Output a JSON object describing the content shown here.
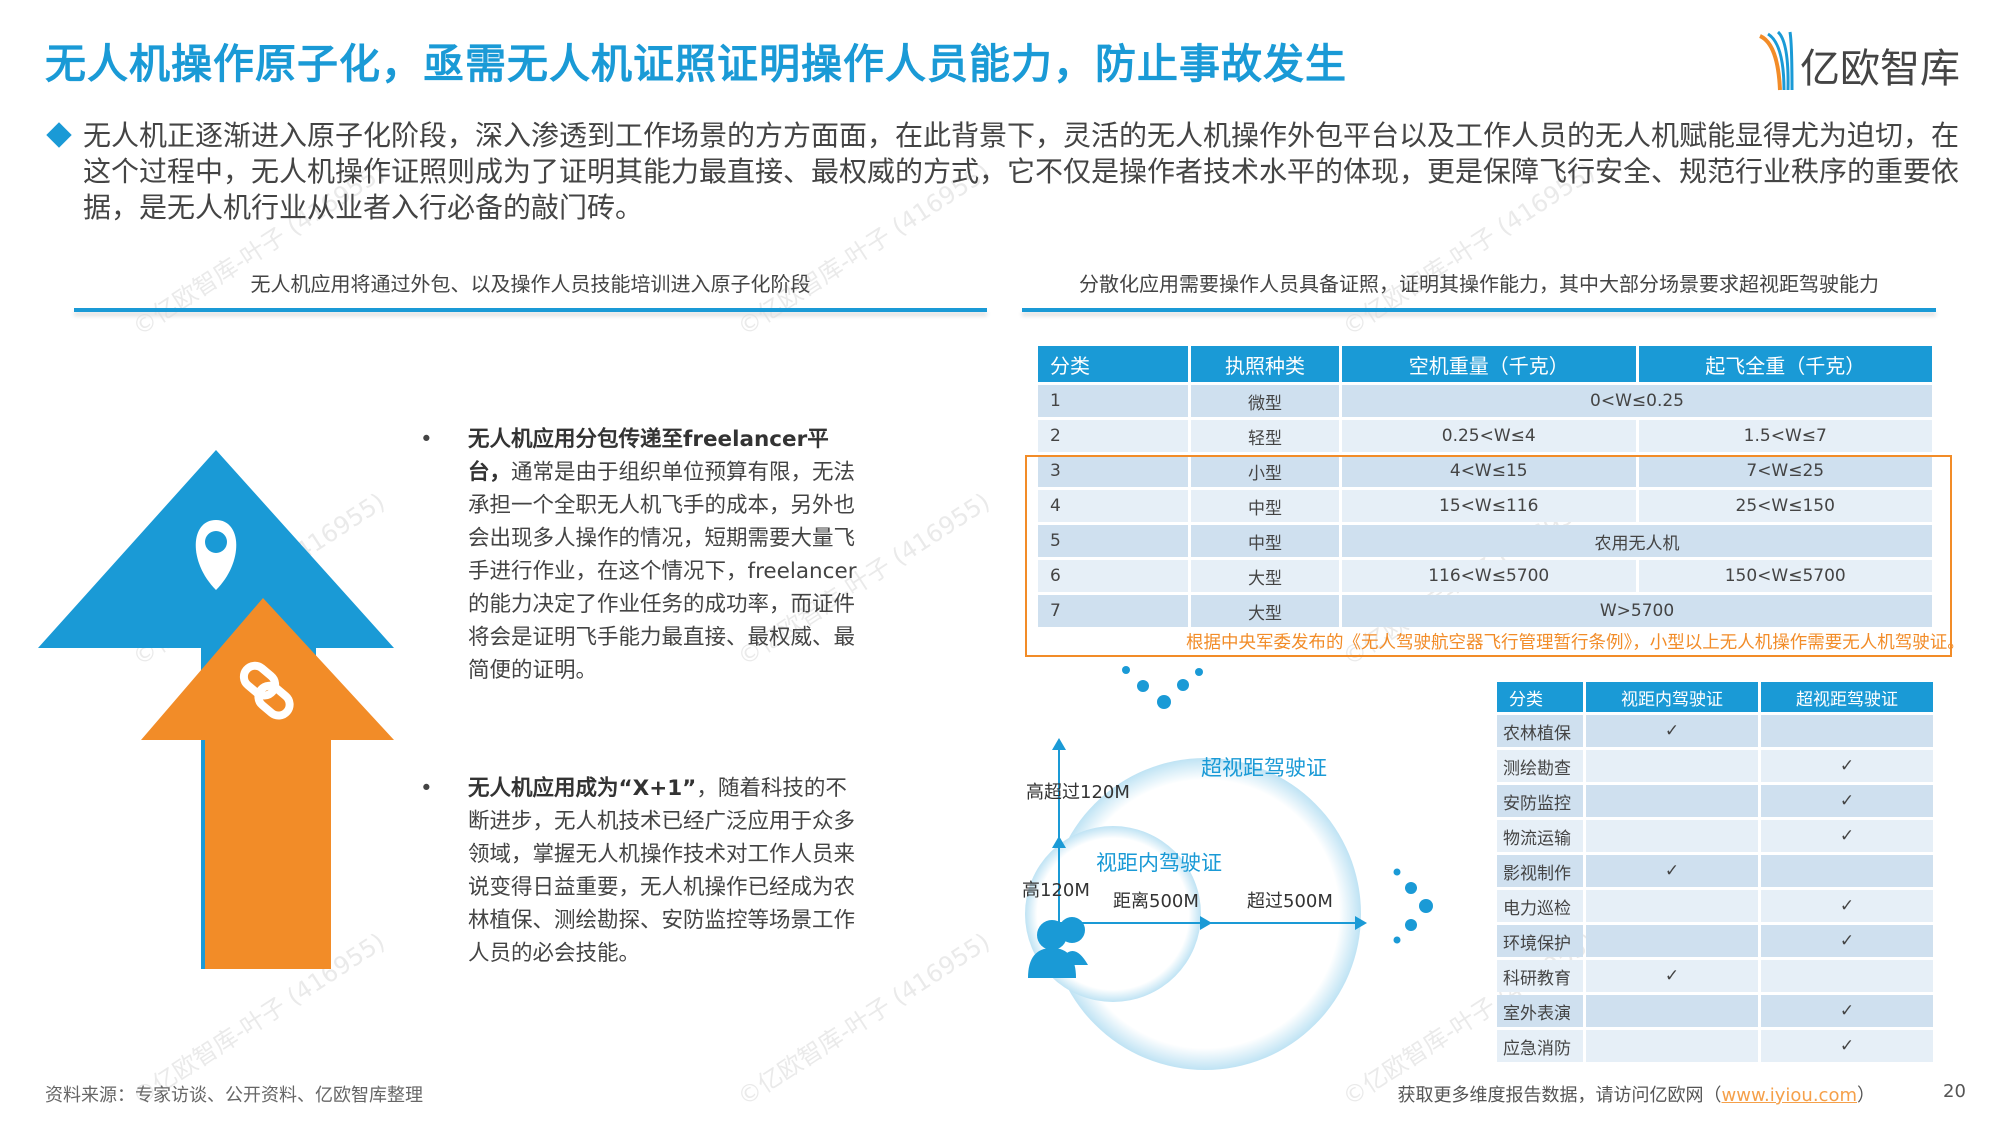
{
  "title": "无人机操作原子化，亟需无人机证照证明操作人员能力，防止事故发生",
  "logo_text": "亿欧智库",
  "intro": "无人机正逐渐进入原子化阶段，深入渗透到工作场景的方方面面，在此背景下，灵活的无人机操作外包平台以及工作人员的无人机赋能显得尤为迫切，在这个过程中，无人机操作证照则成为了证明其能力最直接、最权威的方式，它不仅是操作者技术水平的体现，更是保障飞行安全、规范行业秩序的重要依据，是无人机行业从业者入行必备的敲门砖。",
  "left": {
    "heading": "无人机应用将通过外包、以及操作人员技能培训进入原子化阶段",
    "bullets": [
      {
        "bold": "无人机应用分包传递至freelancer平台，",
        "text": "通常是由于组织单位预算有限，无法承担一个全职无人机飞手的成本，另外也会出现多人操作的情况，短期需要大量飞手进行作业，在这个情况下，freelancer的能力决定了作业任务的成功率，而证件将会是证明飞手能力最直接、最权威、最简便的证明。"
      },
      {
        "bold": "无人机应用成为“X+1”",
        "text": "，随着科技的不断进步，无人机技术已经广泛应用于众多领域，掌握无人机操作技术对工作人员来说变得日益重要，无人机操作已经成为农林植保、测绘勘探、安防监控等场景工作人员的必会技能。"
      }
    ],
    "bullet_char": "•",
    "icons": [
      "location-pin-icon",
      "link-chain-icon"
    ],
    "colors": {
      "blue": "#1a9ad6",
      "orange": "#f28c28"
    }
  },
  "right": {
    "heading": "分散化应用需要操作人员具备证照，证明其操作能力，其中大部分场景要求超视距驾驶能力",
    "table1": {
      "headers": [
        "分类",
        "执照种类",
        "空机重量（千克）",
        "起飞全重（千克）"
      ],
      "rows": [
        [
          "1",
          "微型",
          "0<W≤0.25",
          null
        ],
        [
          "2",
          "轻型",
          "0.25<W≤4",
          "1.5<W≤7"
        ],
        [
          "3",
          "小型",
          "4<W≤15",
          "7<W≤25"
        ],
        [
          "4",
          "中型",
          "15<W≤116",
          "25<W≤150"
        ],
        [
          "5",
          "中型",
          "农用无人机",
          null
        ],
        [
          "6",
          "大型",
          "116<W≤5700",
          "150<W≤5700"
        ],
        [
          "7",
          "大型",
          "W>5700",
          null
        ]
      ]
    },
    "note": "根据中央军委发布的《无人驾驶航空器飞行管理暂行条例》，小型以上无人机操作需要无人机驾驶证。",
    "diagram": {
      "outer_label": "超视距驾驶证",
      "inner_label": "视距内驾驶证",
      "height_high": "高超过120M",
      "height_low": "高120M",
      "dist_near": "距离500M",
      "dist_far": "超过500M",
      "icon": "user-group-icon"
    },
    "table2": {
      "headers": [
        "分类",
        "视距内驾驶证",
        "超视距驾驶证"
      ],
      "check": "✓",
      "rows": [
        [
          "农林植保",
          true,
          false
        ],
        [
          "测绘勘查",
          false,
          true
        ],
        [
          "安防监控",
          false,
          true
        ],
        [
          "物流运输",
          false,
          true
        ],
        [
          "影视制作",
          true,
          false
        ],
        [
          "电力巡检",
          false,
          true
        ],
        [
          "环境保护",
          false,
          true
        ],
        [
          "科研教育",
          true,
          false
        ],
        [
          "室外表演",
          false,
          true
        ],
        [
          "应急消防",
          false,
          true
        ]
      ]
    }
  },
  "footer": {
    "source": "资料来源：专家访谈、公开资料、亿欧智库整理",
    "more_prefix": "获取更多维度报告数据，请访问亿欧网（",
    "more_link": "www.iyiou.com",
    "more_suffix": "）",
    "page": "20"
  },
  "watermark": "©亿欧智库-叶子 (416955)"
}
